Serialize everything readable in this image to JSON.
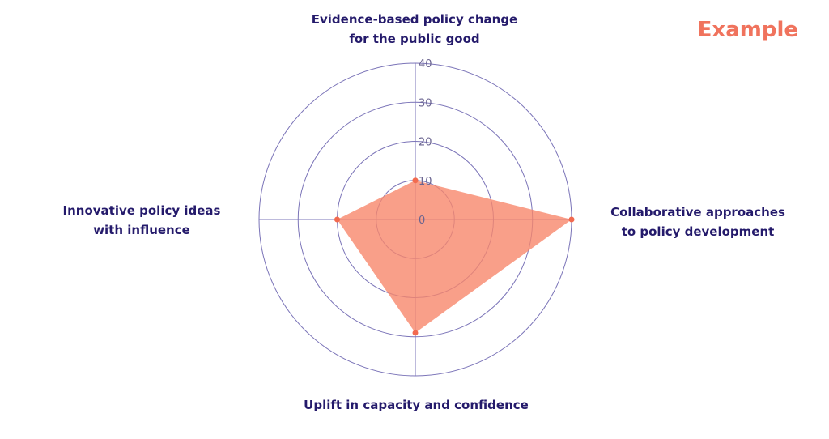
{
  "badge": "Example",
  "chart_data": {
    "type": "radar",
    "title": "",
    "categories": [
      "Evidence-based policy change\nfor the public good",
      "Collaborative approaches\nto policy development",
      "Uplift in capacity and confidence",
      "Innovative policy ideas\nwith influence"
    ],
    "series": [
      {
        "values": [
          10,
          40,
          29,
          20
        ]
      }
    ],
    "rlim": [
      0,
      40
    ],
    "r_ticks": [
      0,
      10,
      20,
      30,
      40
    ],
    "grid": true,
    "colors": {
      "fill": "#f7876b",
      "point": "#f26a4f",
      "grid": "#7b74b8",
      "label": "#241a6b",
      "accent": "#f0735d"
    }
  }
}
